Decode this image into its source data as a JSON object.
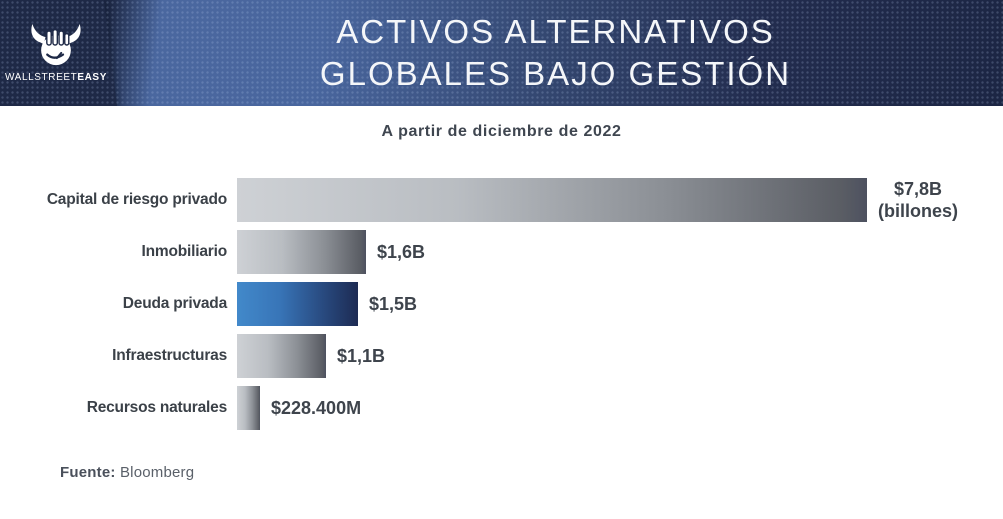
{
  "header": {
    "logo": {
      "brand_regular": "WALLSTREET",
      "brand_bold": "EASY",
      "icon": "bull-fist-icon"
    },
    "title_line1": "ACTIVOS ALTERNATIVOS",
    "title_line2": "GLOBALES BAJO GESTIÓN"
  },
  "subtitle": "A partir de diciembre de 2022",
  "footer": {
    "source_label": "Fuente:",
    "source_value": "Bloomberg"
  },
  "colors": {
    "header_navy": "#1e2946",
    "header_band_blue": "#49669e",
    "title_text": "#f4f6f9",
    "body_text_dark": "#3b4148",
    "footer_text": "#5a6069",
    "bar_gray_start": "#ced1d5",
    "bar_gray_end": "#5a5d64",
    "bar_blue_start": "#4289ca",
    "bar_blue_end": "#1d2b53"
  },
  "chart_data": {
    "type": "bar",
    "orientation": "horizontal",
    "title": "ACTIVOS ALTERNATIVOS GLOBALES BAJO GESTIÓN",
    "subtitle": "A partir de diciembre de 2022",
    "source": "Bloomberg",
    "xlim_billions": [
      0,
      7.8
    ],
    "grid": false,
    "legend": false,
    "categories": [
      "Capital de riesgo privado",
      "Inmobiliario",
      "Deuda privada",
      "Infraestructuras",
      "Recursos naturales"
    ],
    "values_billions": [
      7.8,
      1.6,
      1.5,
      1.1,
      0.2284
    ],
    "bars": [
      {
        "category": "Capital de riesgo privado",
        "value_billions": 7.8,
        "display": "$7,8B",
        "display_note": "(billones)",
        "variant": "gray"
      },
      {
        "category": "Inmobiliario",
        "value_billions": 1.6,
        "display": "$1,6B",
        "display_note": "",
        "variant": "gray"
      },
      {
        "category": "Deuda privada",
        "value_billions": 1.5,
        "display": "$1,5B",
        "display_note": "",
        "variant": "blue"
      },
      {
        "category": "Infraestructuras",
        "value_billions": 1.1,
        "display": "$1,1B",
        "display_note": "",
        "variant": "gray"
      },
      {
        "category": "Recursos naturales",
        "value_billions": 0.2284,
        "display": "$228.400M",
        "display_note": "",
        "variant": "gray"
      }
    ]
  }
}
